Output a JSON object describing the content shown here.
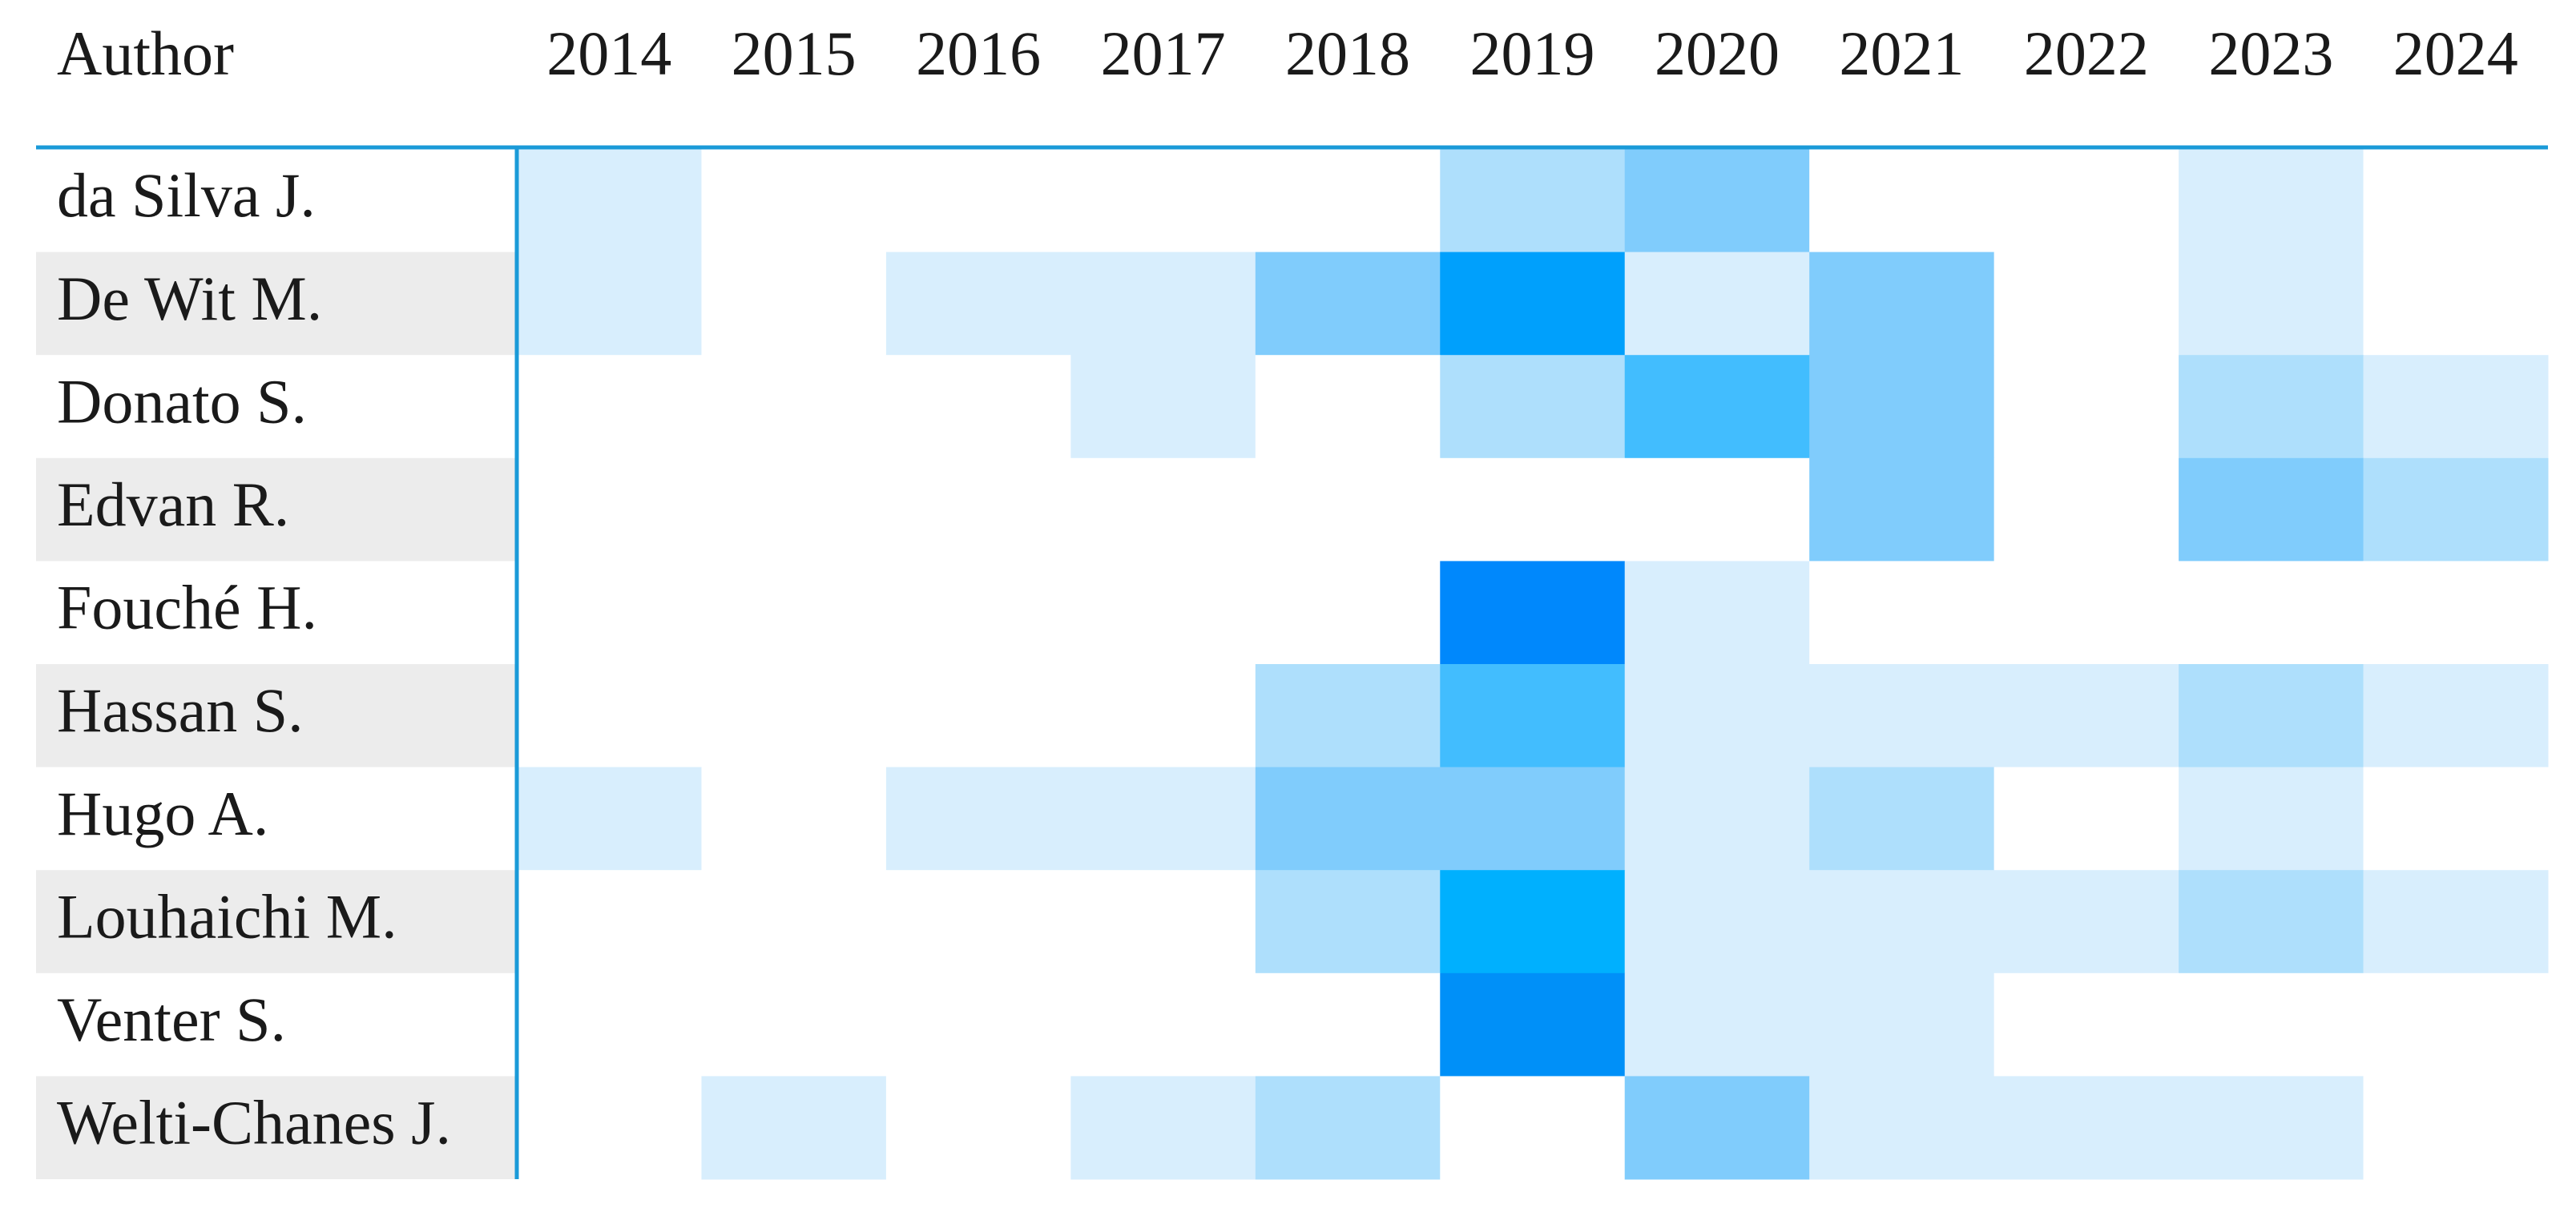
{
  "chart_data": {
    "type": "heatmap",
    "row_header": "Author",
    "columns": [
      "2014",
      "2015",
      "2016",
      "2017",
      "2018",
      "2019",
      "2020",
      "2021",
      "2022",
      "2023",
      "2024"
    ],
    "rows": [
      "da Silva J.",
      "De Wit M.",
      "Donato S.",
      "Edvan R.",
      "Fouché H.",
      "Hassan S.",
      "Hugo A.",
      "Louhaichi M.",
      "Venter S.",
      "Welti-Chanes J."
    ],
    "values": [
      [
        1,
        0,
        0,
        0,
        0,
        2,
        3,
        0,
        0,
        1,
        0
      ],
      [
        1,
        0,
        1,
        1,
        3,
        6,
        1,
        3,
        0,
        1,
        0
      ],
      [
        0,
        0,
        0,
        1,
        0,
        2,
        4,
        3,
        0,
        2,
        1
      ],
      [
        0,
        0,
        0,
        0,
        0,
        0,
        0,
        3,
        0,
        3,
        2
      ],
      [
        0,
        0,
        0,
        0,
        0,
        8,
        1,
        0,
        0,
        0,
        0
      ],
      [
        0,
        0,
        0,
        0,
        2,
        4,
        1,
        1,
        1,
        2,
        1
      ],
      [
        1,
        0,
        1,
        1,
        3,
        3,
        1,
        2,
        0,
        1,
        0
      ],
      [
        0,
        0,
        0,
        0,
        2,
        5,
        1,
        1,
        1,
        2,
        1
      ],
      [
        0,
        0,
        0,
        0,
        0,
        7,
        1,
        1,
        0,
        0,
        0
      ],
      [
        0,
        1,
        0,
        1,
        2,
        0,
        3,
        1,
        1,
        1,
        0
      ]
    ],
    "color_scale": [
      "#ffffff",
      "#d8eefd",
      "#aedffc",
      "#80ccfc",
      "#42bdfe",
      "#00b0fe",
      "#00a0fc",
      "#0090f8",
      "#0088fc"
    ],
    "stripe_color": "#ececec",
    "rule_color": "#1a9ad8"
  }
}
